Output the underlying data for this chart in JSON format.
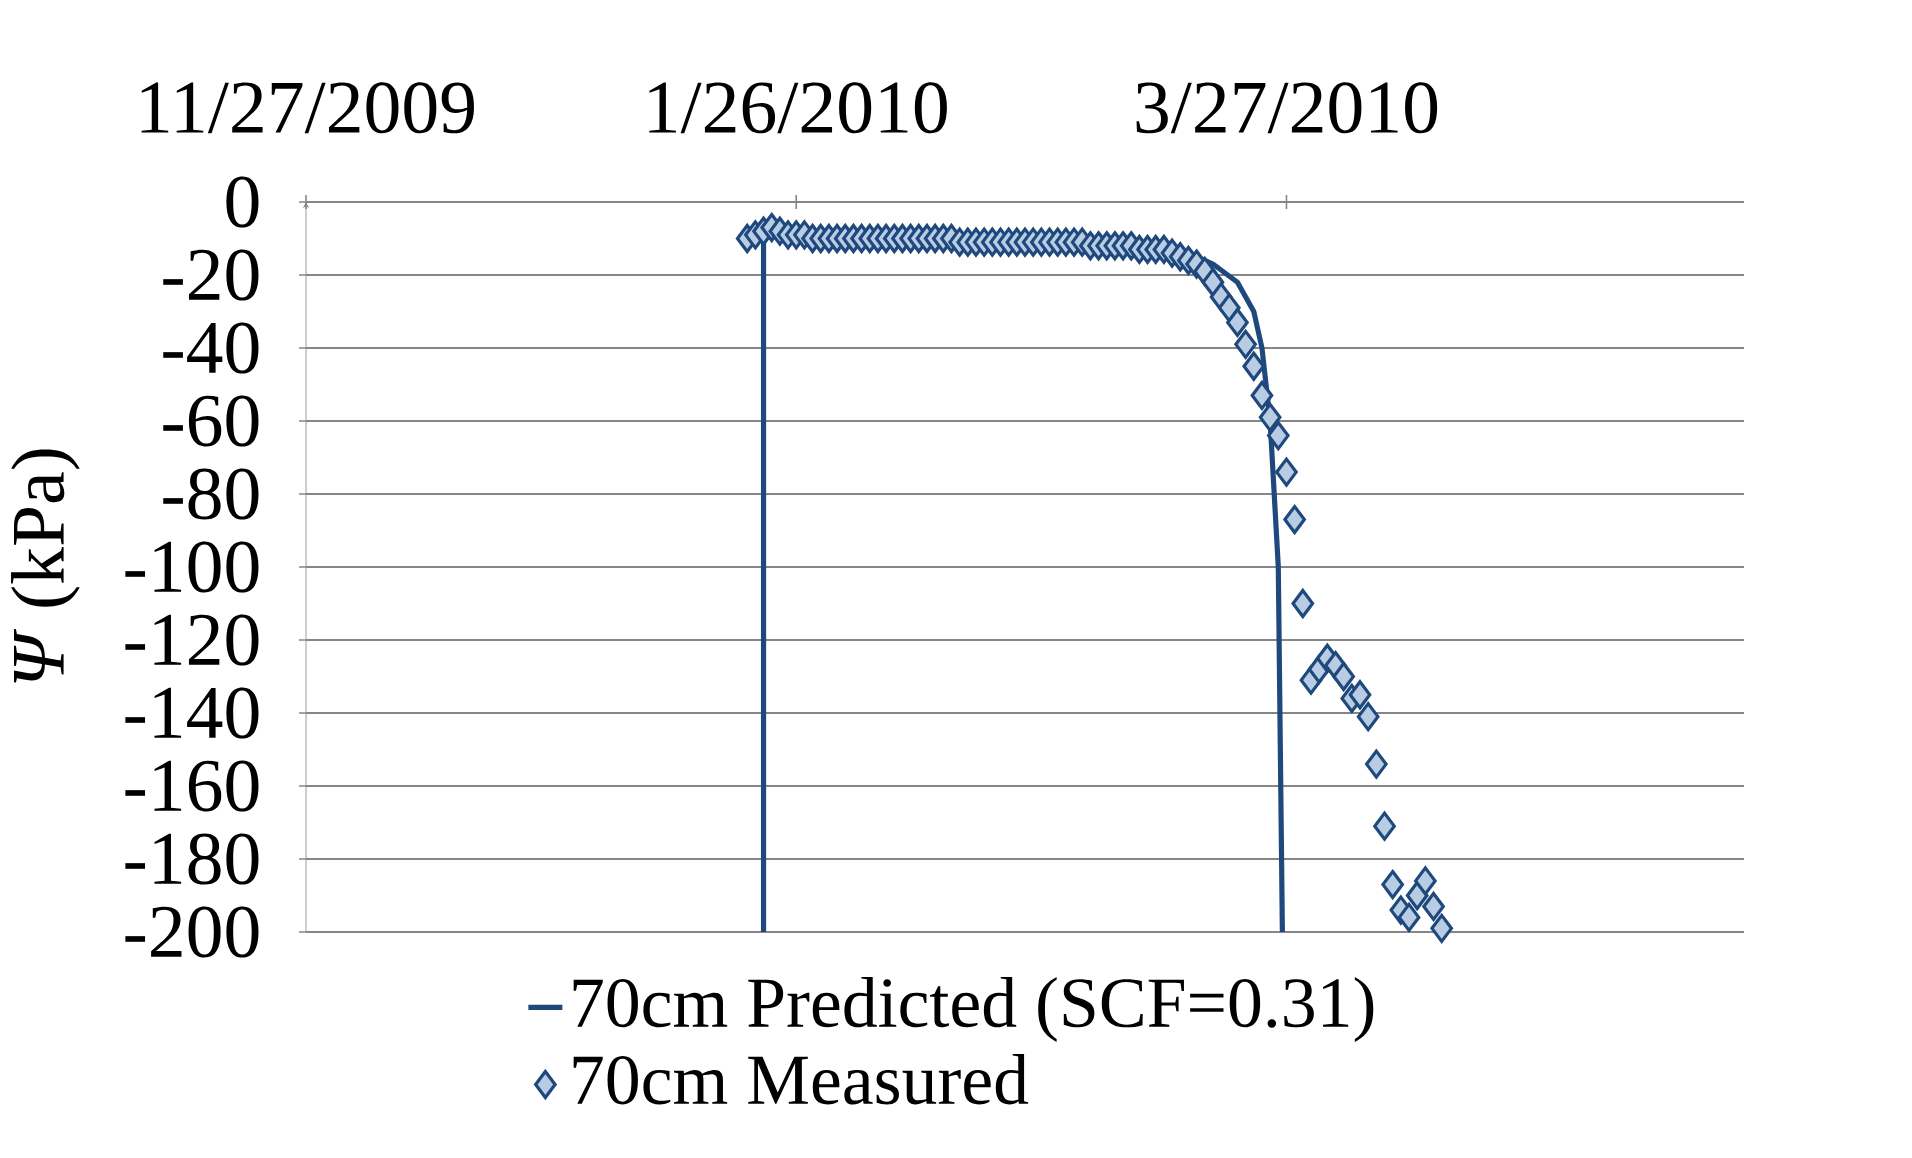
{
  "chart_data": {
    "type": "line",
    "ylabel": "*Ψ* (kPa)",
    "xlim": [
      "2009-11-27",
      "2010-05-22"
    ],
    "xticks": [
      {
        "value": "2009-11-27",
        "label": "11/27/2009"
      },
      {
        "value": "2010-01-26",
        "label": "1/26/2010"
      },
      {
        "value": "2010-03-27",
        "label": "3/27/2010"
      }
    ],
    "ylim": [
      -200,
      0
    ],
    "yticks": [
      0,
      -20,
      -40,
      -60,
      -80,
      -100,
      -120,
      -140,
      -160,
      -180,
      -200
    ],
    "grid": "y",
    "legend": "bottom",
    "series": [
      {
        "name": "70cm Predicted (SCF=0.31)",
        "color": "#1f497d",
        "marker": "none",
        "x": [
          "2010-01-22",
          "2010-01-22",
          "2010-01-23",
          "2010-01-26",
          "2010-02-05",
          "2010-02-25",
          "2010-03-10",
          "2010-03-15",
          "2010-03-18",
          "2010-03-21",
          "2010-03-23",
          "2010-03-24",
          "2010-03-25",
          "2010-03-26",
          "2010-03-26T12:00"
        ],
        "values": [
          -200,
          -10,
          -6,
          -8,
          -9,
          -10,
          -12,
          -14,
          -17,
          -22,
          -30,
          -40,
          -60,
          -100,
          -200
        ]
      },
      {
        "name": "70cm Measured",
        "type": "scatter",
        "color": "#1f497d",
        "marker": "diamond",
        "x": [
          "2010-01-20",
          "2010-01-21",
          "2010-01-22",
          "2010-01-23",
          "2010-01-24",
          "2010-01-25",
          "2010-01-26",
          "2010-01-27",
          "2010-01-28",
          "2010-01-29",
          "2010-01-30",
          "2010-01-31",
          "2010-02-01",
          "2010-02-02",
          "2010-02-03",
          "2010-02-04",
          "2010-02-05",
          "2010-02-06",
          "2010-02-07",
          "2010-02-08",
          "2010-02-09",
          "2010-02-10",
          "2010-02-11",
          "2010-02-12",
          "2010-02-13",
          "2010-02-14",
          "2010-02-15",
          "2010-02-16",
          "2010-02-17",
          "2010-02-18",
          "2010-02-19",
          "2010-02-20",
          "2010-02-21",
          "2010-02-22",
          "2010-02-23",
          "2010-02-24",
          "2010-02-25",
          "2010-02-26",
          "2010-02-27",
          "2010-02-28",
          "2010-03-01",
          "2010-03-02",
          "2010-03-03",
          "2010-03-04",
          "2010-03-05",
          "2010-03-06",
          "2010-03-07",
          "2010-03-08",
          "2010-03-09",
          "2010-03-10",
          "2010-03-11",
          "2010-03-12",
          "2010-03-13",
          "2010-03-14",
          "2010-03-15",
          "2010-03-16",
          "2010-03-17",
          "2010-03-18",
          "2010-03-19",
          "2010-03-20",
          "2010-03-21",
          "2010-03-22",
          "2010-03-23",
          "2010-03-24",
          "2010-03-25",
          "2010-03-26",
          "2010-03-27",
          "2010-03-28",
          "2010-03-29",
          "2010-03-30",
          "2010-03-31",
          "2010-04-01",
          "2010-04-02",
          "2010-04-03",
          "2010-04-04",
          "2010-04-05",
          "2010-04-06",
          "2010-04-07",
          "2010-04-08",
          "2010-04-09",
          "2010-04-10",
          "2010-04-11",
          "2010-04-12",
          "2010-04-13",
          "2010-04-14",
          "2010-04-15"
        ],
        "values": [
          -10,
          -9,
          -8,
          -7,
          -8,
          -9,
          -9,
          -9,
          -10,
          -10,
          -10,
          -10,
          -10,
          -10,
          -10,
          -10,
          -10,
          -10,
          -10,
          -10,
          -10,
          -10,
          -10,
          -10,
          -10,
          -10,
          -11,
          -11,
          -11,
          -11,
          -11,
          -11,
          -11,
          -11,
          -11,
          -11,
          -11,
          -11,
          -11,
          -11,
          -11,
          -11,
          -12,
          -12,
          -12,
          -12,
          -12,
          -12,
          -13,
          -13,
          -13,
          -13,
          -14,
          -15,
          -16,
          -17,
          -19,
          -22,
          -26,
          -29,
          -33,
          -39,
          -45,
          -53,
          -59,
          -64,
          -74,
          -87,
          -110,
          -131,
          -128,
          -125,
          -127,
          -130,
          -136,
          -135,
          -141,
          -154,
          -171,
          -187,
          -194,
          -196,
          -190,
          -186,
          -193,
          -199
        ]
      }
    ]
  }
}
